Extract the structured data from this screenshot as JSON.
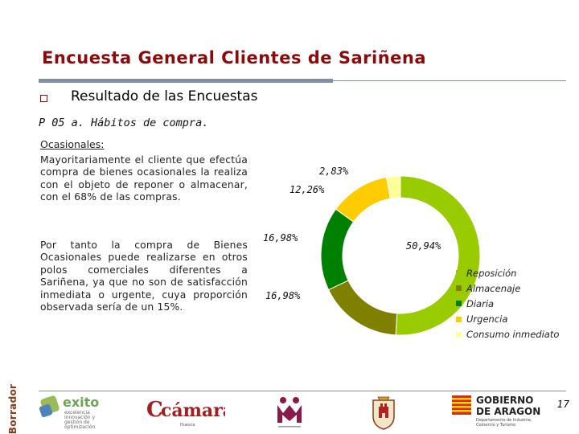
{
  "header": {
    "title": "Encuesta General Clientes de Sariñena",
    "subtitle": "Resultado de las Encuestas",
    "question": "P 05 a. Hábitos de compra."
  },
  "body": {
    "section_label": "Ocasionales:",
    "paragraph_1": "Mayoritariamente el cliente que efectúa compra de bienes ocasionales la realiza con el objeto de reponer o almacenar, con el 68% de las compras.",
    "paragraph_2": "Por tanto la compra de Bienes Ocasionales puede realizarse en otros polos comerciales diferentes a Sariñena, ya que no son de satisfacción inmediata o urgente, cuya proporción observada sería de un 15%."
  },
  "chart_data": {
    "type": "pie",
    "variant": "donut",
    "slices": [
      {
        "name": "Reposición",
        "value": 50.94,
        "label": "50,94%",
        "color": "#99cc00"
      },
      {
        "name": "Almacenaje",
        "value": 16.98,
        "label": "16,98%",
        "color": "#808000"
      },
      {
        "name": "Diaria",
        "value": 16.98,
        "label": "16,98%",
        "color": "#008000"
      },
      {
        "name": "Urgencia",
        "value": 12.26,
        "label": "12,26%",
        "color": "#ffcc00"
      },
      {
        "name": "Consumo inmediato",
        "value": 2.83,
        "label": "2,83%",
        "color": "#ffff99"
      }
    ],
    "legend_position": "right"
  },
  "footer": {
    "page_number": "17",
    "stamp": "Borrador",
    "logos": {
      "exito_word": "exito",
      "exito_lines": [
        "excelencia",
        "innovación y",
        "gestión de",
        "optimización"
      ],
      "camara_word": "cámara",
      "camara_sub": "Huesca",
      "gobierno_lines": [
        "GOBIERNO",
        "DE ARAGON"
      ],
      "gobierno_sub": [
        "Departamento de Industria,",
        "Comercio y Turismo"
      ]
    }
  }
}
